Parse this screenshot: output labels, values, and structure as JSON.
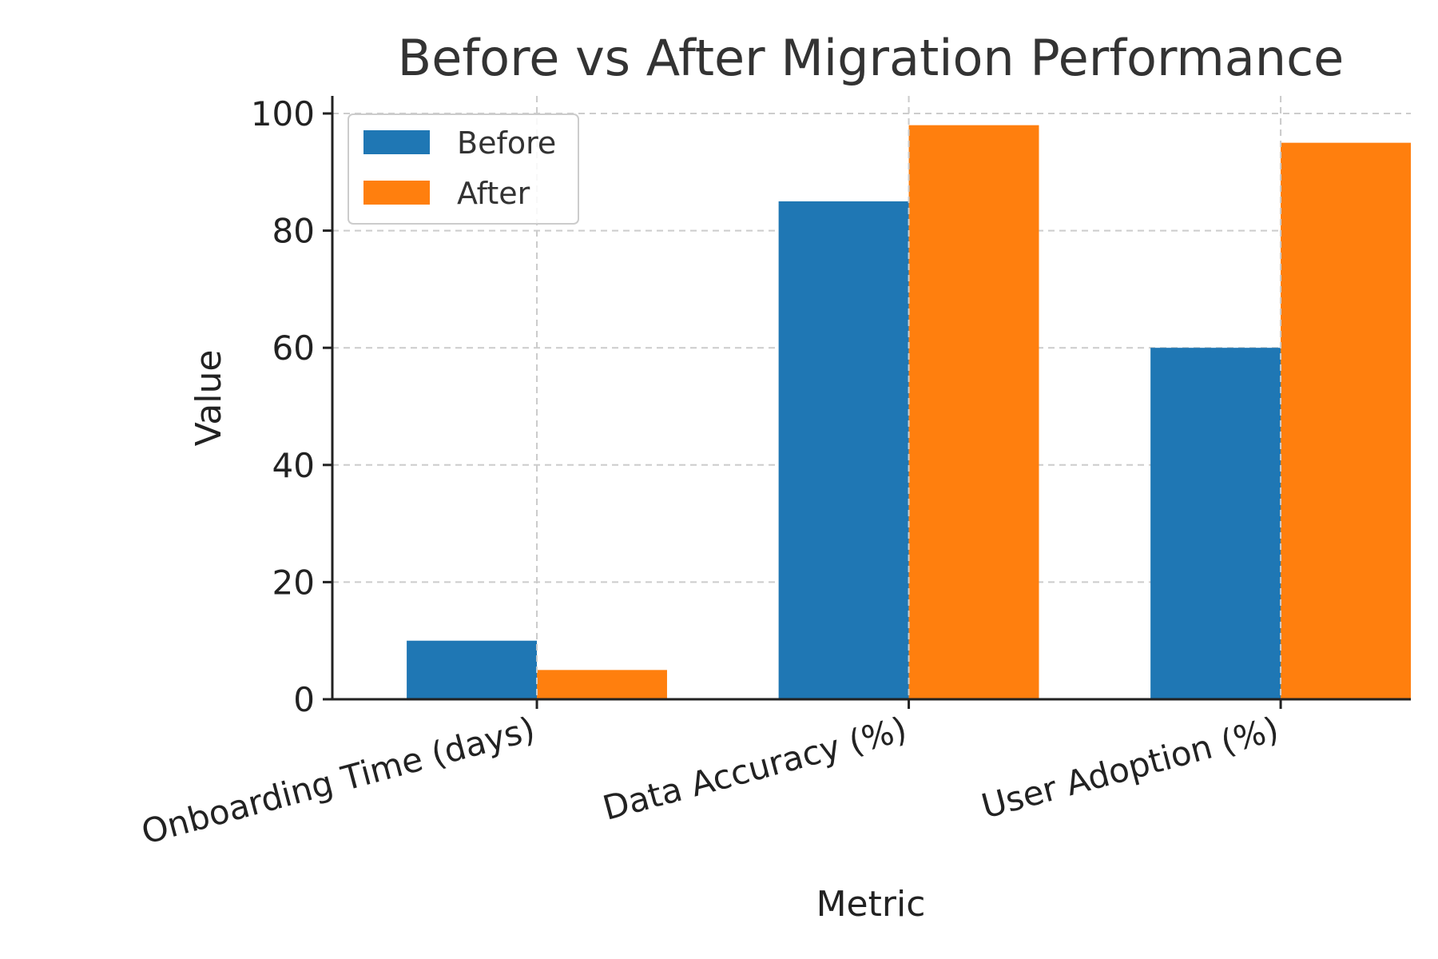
{
  "chart_data": {
    "type": "bar",
    "title": "Before vs After Migration Performance",
    "xlabel": "Metric",
    "ylabel": "Value",
    "categories": [
      "Onboarding Time (days)",
      "Data Accuracy (%)",
      "User Adoption (%)"
    ],
    "series": [
      {
        "name": "Before",
        "color": "#1f77b4",
        "values": [
          10,
          85,
          60
        ]
      },
      {
        "name": "After",
        "color": "#ff7f0e",
        "values": [
          5,
          98,
          95
        ]
      }
    ],
    "ylim": [
      0,
      103
    ],
    "yticks": [
      "0",
      "20",
      "40",
      "60",
      "80",
      "100"
    ],
    "grid": true,
    "legend_position": "top-left"
  }
}
